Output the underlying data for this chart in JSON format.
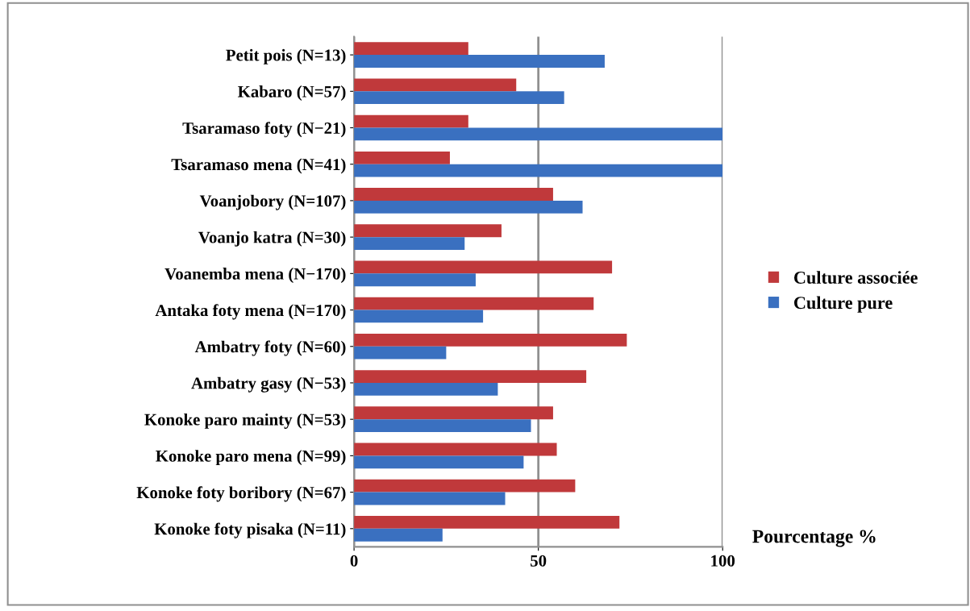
{
  "chart_data": {
    "type": "bar",
    "orientation": "horizontal",
    "xlabel": "Pourcentage %",
    "categories": [
      "Petit pois (N=13)",
      "Kabaro (N=57)",
      "Tsaramaso foty (N−21)",
      "Tsaramaso mena (N=41)",
      "Voanjobory (N=107)",
      "Voanjo katra (N=30)",
      "Voanemba mena (N−170)",
      "Antaka foty mena (N=170)",
      "Ambatry foty (N=60)",
      "Ambatry gasy (N−53)",
      "Konoke paro mainty (N=53)",
      "Konoke paro mena (N=99)",
      "Konoke foty boribory (N=67)",
      "Konoke foty pisaka (N=11)"
    ],
    "series": [
      {
        "name": "Culture associée",
        "color": "#c0393b",
        "values": [
          31,
          44,
          31,
          26,
          54,
          40,
          70,
          65,
          74,
          63,
          54,
          55,
          60,
          72
        ]
      },
      {
        "name": "Culture pure",
        "color": "#3a70c0",
        "values": [
          68,
          57,
          100,
          100,
          62,
          30,
          33,
          35,
          25,
          39,
          48,
          46,
          41,
          24
        ]
      }
    ],
    "xlim": [
      0,
      100
    ],
    "xticks": [
      0,
      50,
      100
    ],
    "grid": "x",
    "legend": "right"
  }
}
